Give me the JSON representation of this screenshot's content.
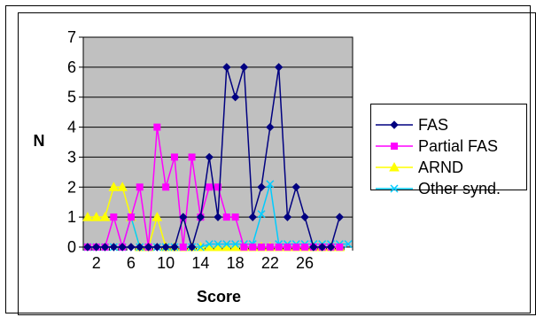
{
  "chart_data": {
    "type": "line",
    "title": "",
    "xlabel": "Score",
    "ylabel": "N",
    "x": [
      1,
      2,
      3,
      4,
      5,
      6,
      7,
      8,
      9,
      10,
      11,
      12,
      13,
      14,
      15,
      16,
      17,
      18,
      19,
      20,
      21,
      22,
      23,
      24,
      25,
      26,
      27,
      28,
      29,
      30,
      31
    ],
    "x_tick_labels": [
      "2",
      "6",
      "10",
      "14",
      "18",
      "22",
      "26"
    ],
    "x_tick_values": [
      2,
      6,
      10,
      14,
      18,
      22,
      26
    ],
    "ylim": [
      0,
      7
    ],
    "y_ticks": [
      0,
      1,
      2,
      3,
      4,
      5,
      6,
      7
    ],
    "grid": "horizontal",
    "legend_position": "right",
    "series": [
      {
        "name": "FAS",
        "color": "#000080",
        "marker": "diamond",
        "values": [
          0,
          0,
          0,
          0,
          0,
          0,
          0,
          0,
          0,
          0,
          0,
          1,
          0,
          1,
          3,
          1,
          6,
          5,
          6,
          1,
          2,
          4,
          6,
          1,
          2,
          1,
          0,
          0,
          0,
          1,
          null
        ]
      },
      {
        "name": "Partial FAS",
        "color": "#FF00FF",
        "marker": "square",
        "values": [
          0,
          0,
          0,
          1,
          0,
          1,
          2,
          0,
          4,
          2,
          3,
          0,
          3,
          1,
          2,
          2,
          1,
          1,
          0,
          0,
          0,
          0,
          0,
          0,
          0,
          0,
          0,
          0,
          0,
          0,
          null
        ]
      },
      {
        "name": "ARND",
        "color": "#FFFF00",
        "marker": "triangle",
        "values": [
          1,
          1,
          1,
          2,
          2,
          1,
          0,
          0,
          1,
          0,
          0,
          0,
          0,
          0,
          0,
          0,
          0,
          0,
          0,
          0,
          0,
          0,
          0,
          0,
          0,
          0,
          0,
          0,
          0,
          0,
          null
        ]
      },
      {
        "name": "Other synd.",
        "color": "#00CCFF",
        "marker": "x",
        "values": [
          0,
          0,
          0,
          0,
          0,
          1,
          0,
          0,
          0,
          0,
          0,
          0,
          0,
          0,
          0.1,
          0.1,
          0.1,
          0.1,
          0.1,
          0.1,
          1.1,
          2.1,
          0.1,
          0.1,
          0.1,
          0.1,
          0.1,
          0.1,
          0.1,
          0.1,
          0.1
        ]
      }
    ]
  },
  "colors": {
    "plot_background": "#C0C0C0",
    "outer_background": "#FFFFFF",
    "gridline": "#000000"
  }
}
